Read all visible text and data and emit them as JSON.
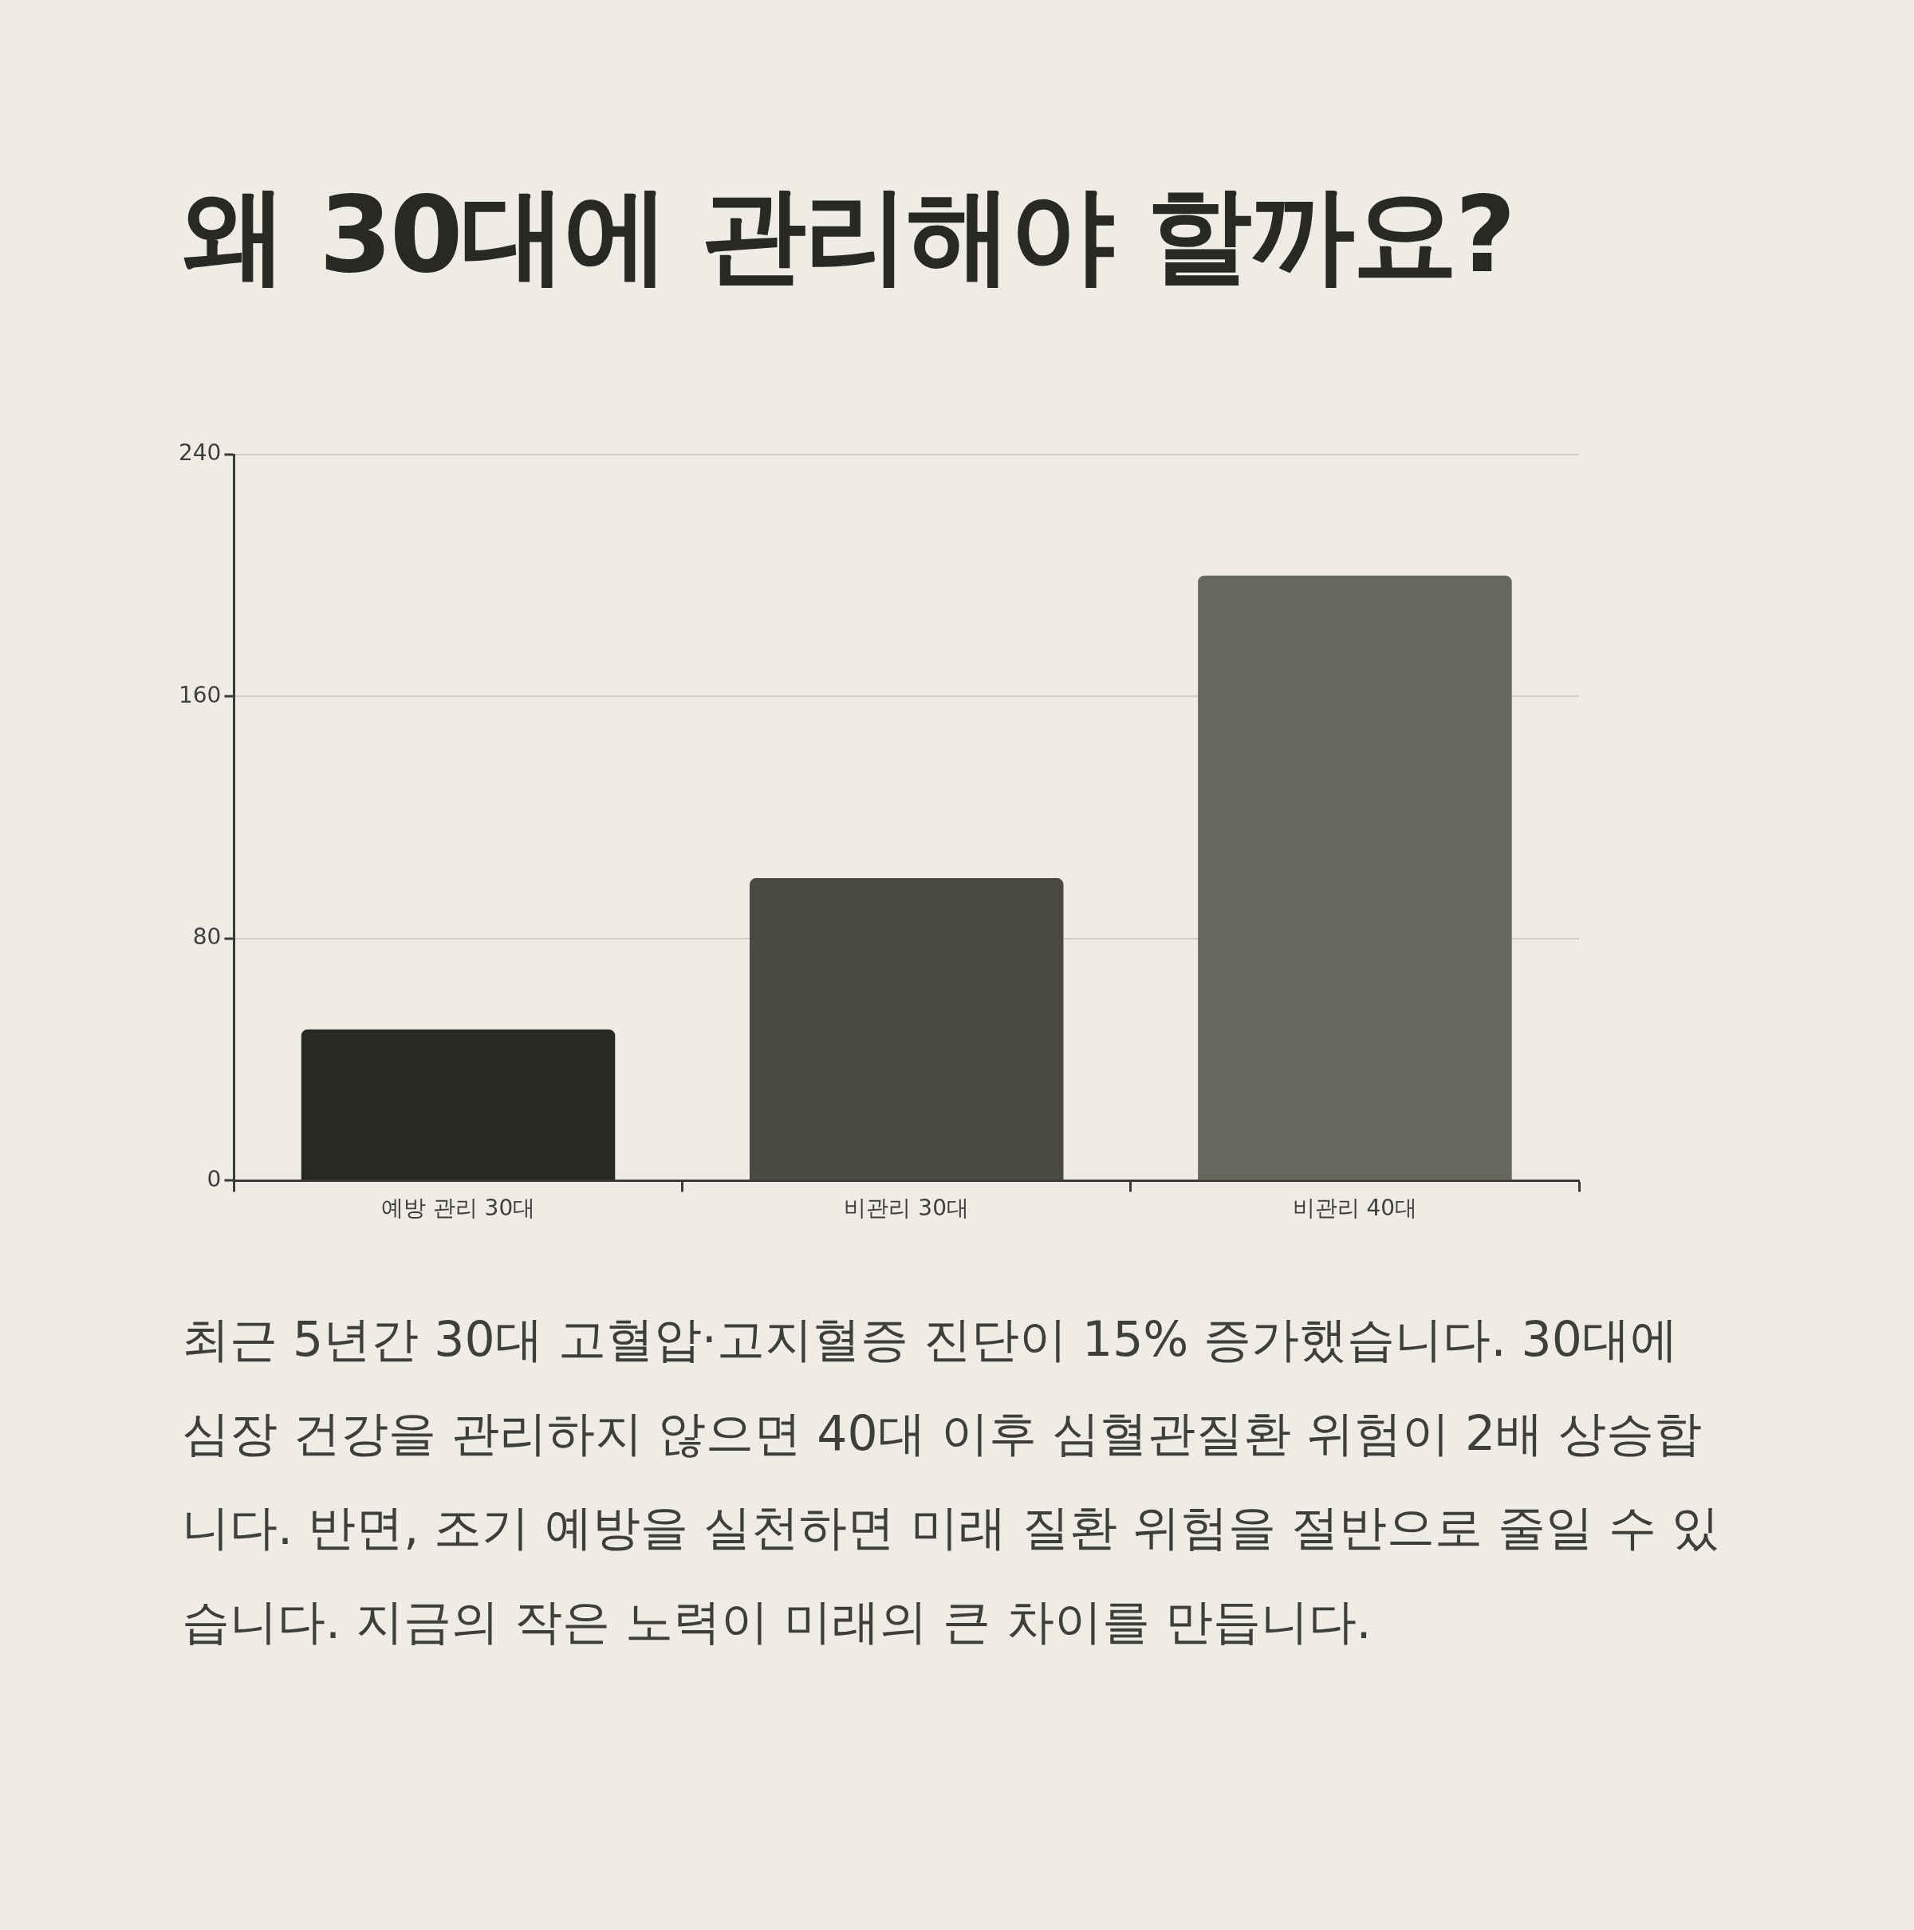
{
  "chart_data": {
    "type": "bar",
    "title": "왜 30대에 관리해야 할까요?",
    "categories": [
      "예방 관리 30대",
      "비관리 30대",
      "비관리 40대"
    ],
    "values": [
      50,
      100,
      200
    ],
    "colors": [
      "#282925",
      "#4a4a42",
      "#67675e"
    ],
    "ylim": [
      0,
      240
    ],
    "yticks": [
      0,
      80,
      160,
      240
    ],
    "grid": "y",
    "legend": false,
    "annotations": [
      "최근 5년간 30대 고혈압·고지혈증 진단이 15% 증가했습니다. 30대에 심장 건강을 관리하지 않으면 40대 이후 심혈관질환 위험이 2배 상승합니다. 반면, 조기 예방을 실천하면 미래 질환 위험을 절반으로 줄일 수 있습니다. 지금의 작은 노력이 미래의 큰 차이를 만듭니다."
    ]
  }
}
